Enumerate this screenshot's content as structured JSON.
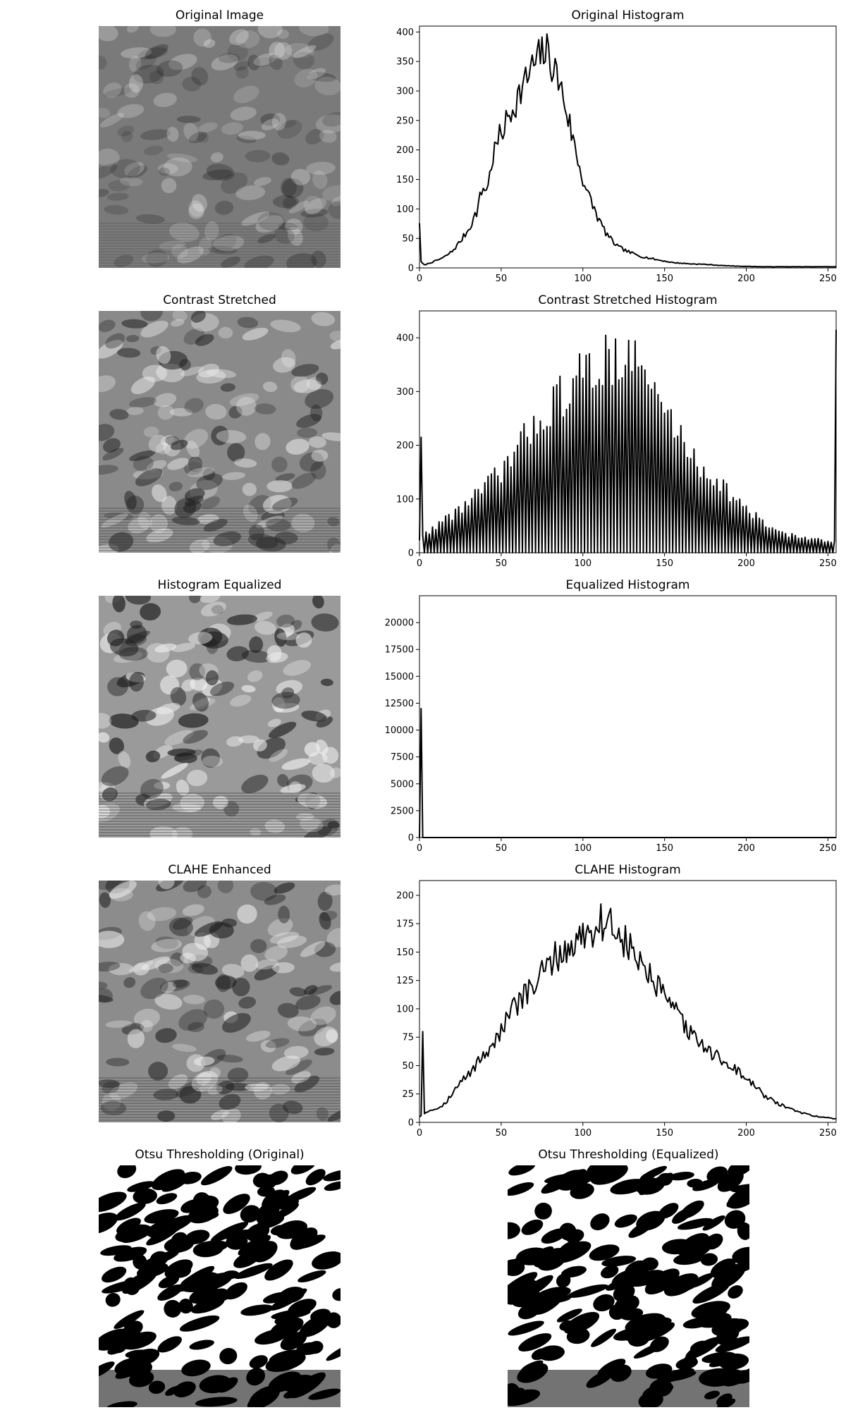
{
  "figure": {
    "rows": [
      {
        "image_title": "Original Image",
        "hist_title": "Original Histogram"
      },
      {
        "image_title": "Contrast Stretched",
        "hist_title": "Contrast Stretched Histogram"
      },
      {
        "image_title": "Histogram Equalized",
        "hist_title": "Equalized Histogram"
      },
      {
        "image_title": "CLAHE Enhanced",
        "hist_title": "CLAHE Histogram"
      }
    ],
    "otsu": [
      {
        "title": "Otsu Thresholding (Original)"
      },
      {
        "title": "Otsu Thresholding (Equalized)"
      }
    ]
  },
  "chart_data": [
    {
      "type": "line",
      "title": "Original Histogram",
      "xlim": [
        0,
        255
      ],
      "ylim": [
        0,
        410
      ],
      "xticks": [
        0,
        50,
        100,
        150,
        200,
        250
      ],
      "yticks": [
        0,
        50,
        100,
        150,
        200,
        250,
        300,
        350,
        400
      ],
      "series_color": "#000000",
      "anchors": [
        [
          0,
          80
        ],
        [
          1,
          10
        ],
        [
          3,
          5
        ],
        [
          6,
          8
        ],
        [
          10,
          12
        ],
        [
          15,
          18
        ],
        [
          20,
          28
        ],
        [
          25,
          45
        ],
        [
          30,
          65
        ],
        [
          35,
          95
        ],
        [
          38,
          130
        ],
        [
          42,
          140
        ],
        [
          45,
          190
        ],
        [
          48,
          215
        ],
        [
          52,
          240
        ],
        [
          56,
          265
        ],
        [
          60,
          290
        ],
        [
          64,
          310
        ],
        [
          68,
          335
        ],
        [
          72,
          350
        ],
        [
          76,
          368
        ],
        [
          79,
          362
        ],
        [
          82,
          340
        ],
        [
          85,
          320
        ],
        [
          88,
          290
        ],
        [
          91,
          255
        ],
        [
          95,
          205
        ],
        [
          99,
          160
        ],
        [
          103,
          125
        ],
        [
          107,
          100
        ],
        [
          110,
          80
        ],
        [
          114,
          60
        ],
        [
          118,
          45
        ],
        [
          122,
          35
        ],
        [
          128,
          27
        ],
        [
          135,
          20
        ],
        [
          145,
          14
        ],
        [
          155,
          9
        ],
        [
          165,
          7
        ],
        [
          175,
          6
        ],
        [
          185,
          4
        ],
        [
          195,
          3
        ],
        [
          210,
          2
        ],
        [
          230,
          2
        ],
        [
          255,
          2
        ]
      ]
    },
    {
      "type": "line",
      "title": "Contrast Stretched Histogram",
      "xlim": [
        0,
        255
      ],
      "ylim": [
        0,
        450
      ],
      "xticks": [
        0,
        50,
        100,
        150,
        200,
        250
      ],
      "yticks": [
        0,
        100,
        200,
        300,
        400
      ],
      "series_color": "#000000",
      "comb_alternating_zero": true,
      "spikes": [
        [
          1,
          215
        ],
        [
          255,
          415
        ]
      ],
      "anchors": [
        [
          0,
          25
        ],
        [
          10,
          50
        ],
        [
          20,
          70
        ],
        [
          30,
          95
        ],
        [
          40,
          120
        ],
        [
          50,
          150
        ],
        [
          60,
          190
        ],
        [
          70,
          240
        ],
        [
          80,
          270
        ],
        [
          90,
          300
        ],
        [
          100,
          330
        ],
        [
          110,
          350
        ],
        [
          120,
          370
        ],
        [
          130,
          360
        ],
        [
          140,
          320
        ],
        [
          150,
          265
        ],
        [
          160,
          215
        ],
        [
          170,
          165
        ],
        [
          180,
          140
        ],
        [
          190,
          110
        ],
        [
          200,
          80
        ],
        [
          210,
          55
        ],
        [
          220,
          40
        ],
        [
          230,
          30
        ],
        [
          240,
          25
        ],
        [
          250,
          20
        ]
      ]
    },
    {
      "type": "line",
      "title": "Equalized Histogram",
      "xlim": [
        0,
        255
      ],
      "ylim": [
        0,
        22500
      ],
      "xticks": [
        0,
        50,
        100,
        150,
        200,
        250
      ],
      "yticks": [
        0,
        2500,
        5000,
        7500,
        10000,
        12500,
        15000,
        17500,
        20000
      ],
      "series_color": "#000000",
      "spikes": [
        [
          0,
          0
        ],
        [
          1,
          12000
        ],
        [
          2,
          0
        ]
      ],
      "baseline_value": 0
    },
    {
      "type": "line",
      "title": "CLAHE Histogram",
      "xlim": [
        0,
        255
      ],
      "ylim": [
        0,
        213
      ],
      "xticks": [
        0,
        50,
        100,
        150,
        200,
        250
      ],
      "yticks": [
        0,
        25,
        50,
        75,
        100,
        125,
        150,
        175,
        200
      ],
      "series_color": "#000000",
      "spikes": [
        [
          2,
          80
        ]
      ],
      "anchors": [
        [
          0,
          5
        ],
        [
          5,
          10
        ],
        [
          10,
          12
        ],
        [
          15,
          16
        ],
        [
          20,
          25
        ],
        [
          25,
          35
        ],
        [
          30,
          42
        ],
        [
          35,
          52
        ],
        [
          40,
          60
        ],
        [
          45,
          70
        ],
        [
          50,
          80
        ],
        [
          55,
          95
        ],
        [
          60,
          105
        ],
        [
          65,
          112
        ],
        [
          70,
          120
        ],
        [
          75,
          130
        ],
        [
          80,
          140
        ],
        [
          85,
          148
        ],
        [
          90,
          150
        ],
        [
          95,
          158
        ],
        [
          100,
          165
        ],
        [
          105,
          170
        ],
        [
          110,
          175
        ],
        [
          115,
          178
        ],
        [
          120,
          170
        ],
        [
          125,
          160
        ],
        [
          130,
          150
        ],
        [
          135,
          140
        ],
        [
          140,
          130
        ],
        [
          145,
          120
        ],
        [
          150,
          110
        ],
        [
          155,
          100
        ],
        [
          160,
          90
        ],
        [
          165,
          80
        ],
        [
          170,
          72
        ],
        [
          175,
          65
        ],
        [
          180,
          60
        ],
        [
          185,
          55
        ],
        [
          190,
          50
        ],
        [
          195,
          45
        ],
        [
          200,
          38
        ],
        [
          205,
          32
        ],
        [
          210,
          25
        ],
        [
          215,
          20
        ],
        [
          220,
          16
        ],
        [
          225,
          13
        ],
        [
          230,
          10
        ],
        [
          235,
          8
        ],
        [
          240,
          6
        ],
        [
          245,
          5
        ],
        [
          250,
          4
        ],
        [
          255,
          3
        ]
      ]
    }
  ]
}
